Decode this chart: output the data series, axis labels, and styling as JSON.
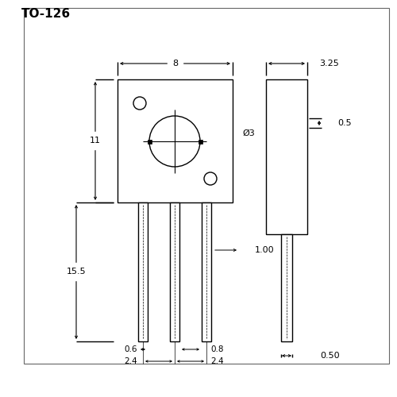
{
  "title": "TO-126",
  "bg": "#ffffff",
  "lc": "#000000",
  "annotations": {
    "dim_8": "8",
    "dim_11": "11",
    "dim_15_5": "15.5",
    "dim_3_25": "3.25",
    "dim_0_5": "0.5",
    "dim_1_00": "1.00",
    "dim_0_50": "0.50",
    "dim_phi3": "Ø3",
    "dim_0_6": "0.6",
    "dim_0_8": "0.8",
    "dim_2_4_left": "2.4",
    "dim_2_4_right": "2.4"
  }
}
